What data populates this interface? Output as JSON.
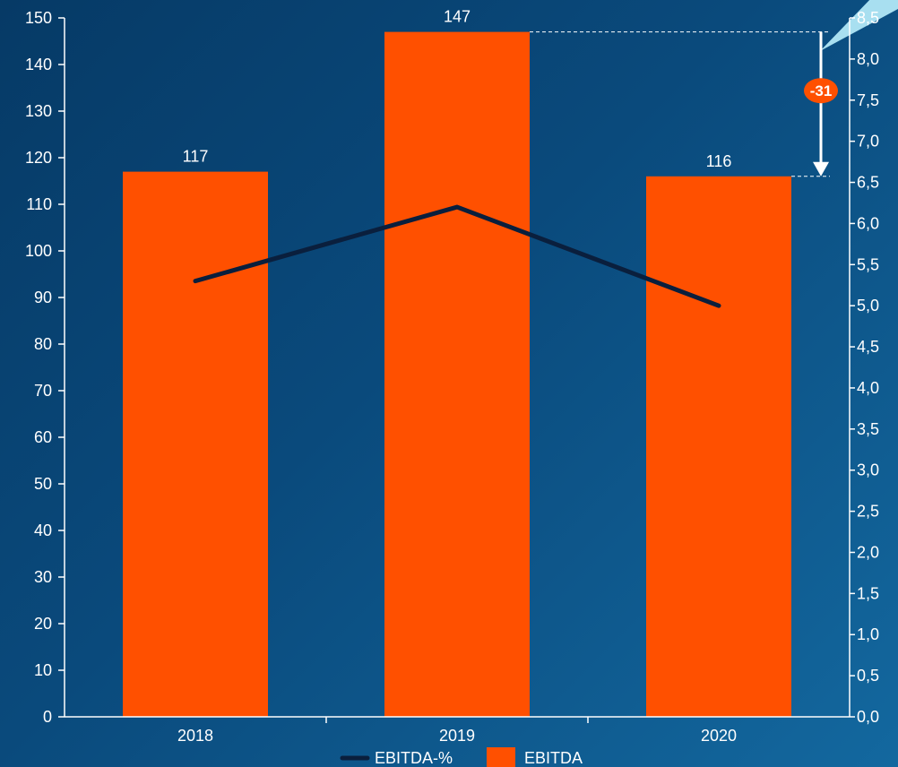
{
  "chart_data": {
    "type": "bar",
    "categories": [
      "2018",
      "2019",
      "2020"
    ],
    "series": [
      {
        "name": "EBITDA",
        "type": "bar",
        "axis": "left",
        "values": [
          117,
          147,
          116
        ],
        "color": "#ff5000"
      },
      {
        "name": "EBITDA-%",
        "type": "line",
        "axis": "right",
        "values": [
          5.3,
          6.2,
          5.0
        ],
        "color": "#0a1f3d"
      }
    ],
    "data_labels": [
      "117",
      "147",
      "116"
    ],
    "y_left": {
      "range": [
        0,
        150
      ],
      "ticks": [
        "0",
        "10",
        "20",
        "30",
        "40",
        "50",
        "60",
        "70",
        "80",
        "90",
        "100",
        "110",
        "120",
        "130",
        "140",
        "150"
      ]
    },
    "y_right": {
      "range": [
        0,
        8.5
      ],
      "ticks": [
        "0,0",
        "0,5",
        "1,0",
        "1,5",
        "2,0",
        "2,5",
        "3,0",
        "3,5",
        "4,0",
        "4,5",
        "5,0",
        "5,5",
        "6,0",
        "6,5",
        "7,0",
        "7,5",
        "8,0",
        "8,5"
      ]
    },
    "annotation": {
      "label": "-31",
      "from": 147,
      "to": 116,
      "color": "#ff5000"
    },
    "legend": {
      "position": "bottom",
      "entries": [
        "EBITDA-%",
        "EBITDA"
      ]
    },
    "grid": false,
    "colors": {
      "axis": "#ffffff",
      "text": "#ffffff",
      "accent_shape": "#a8dff0"
    }
  }
}
